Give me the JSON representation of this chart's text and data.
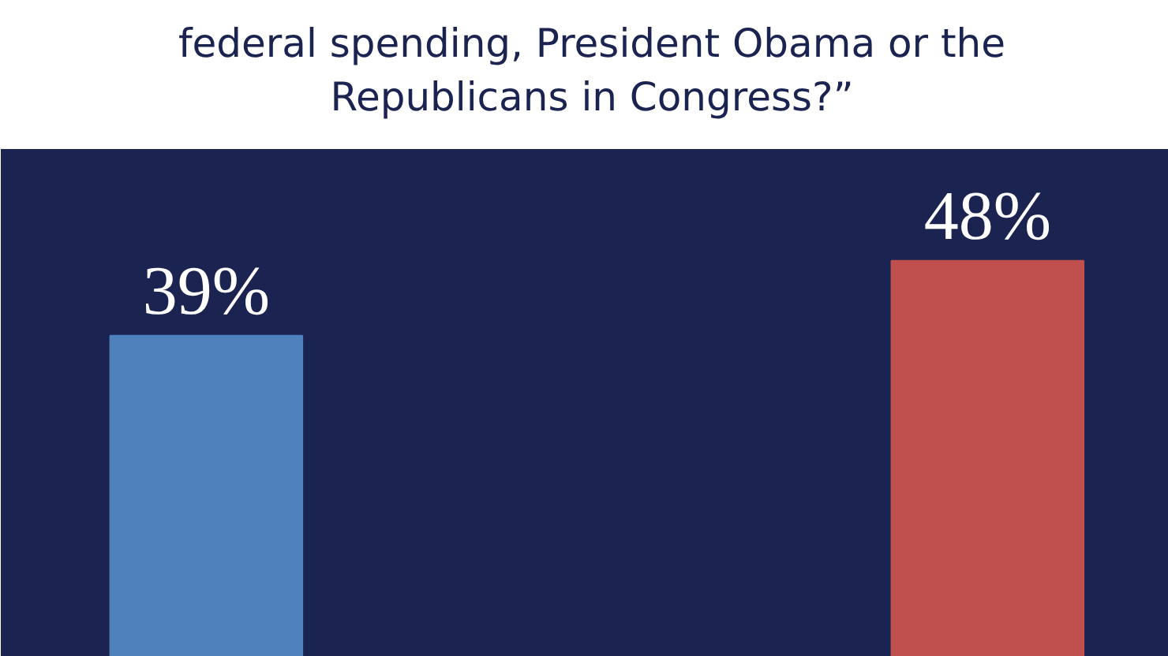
{
  "chart_data": {
    "type": "bar",
    "title": "federal spending, President Obama or the\nRepublicans in Congress?”",
    "categories": [
      null,
      null
    ],
    "values": [
      39,
      48
    ],
    "colors": [
      "#4f81bd",
      "#c0504d"
    ],
    "value_labels": [
      "39%",
      "48%"
    ],
    "grid": false
  }
}
